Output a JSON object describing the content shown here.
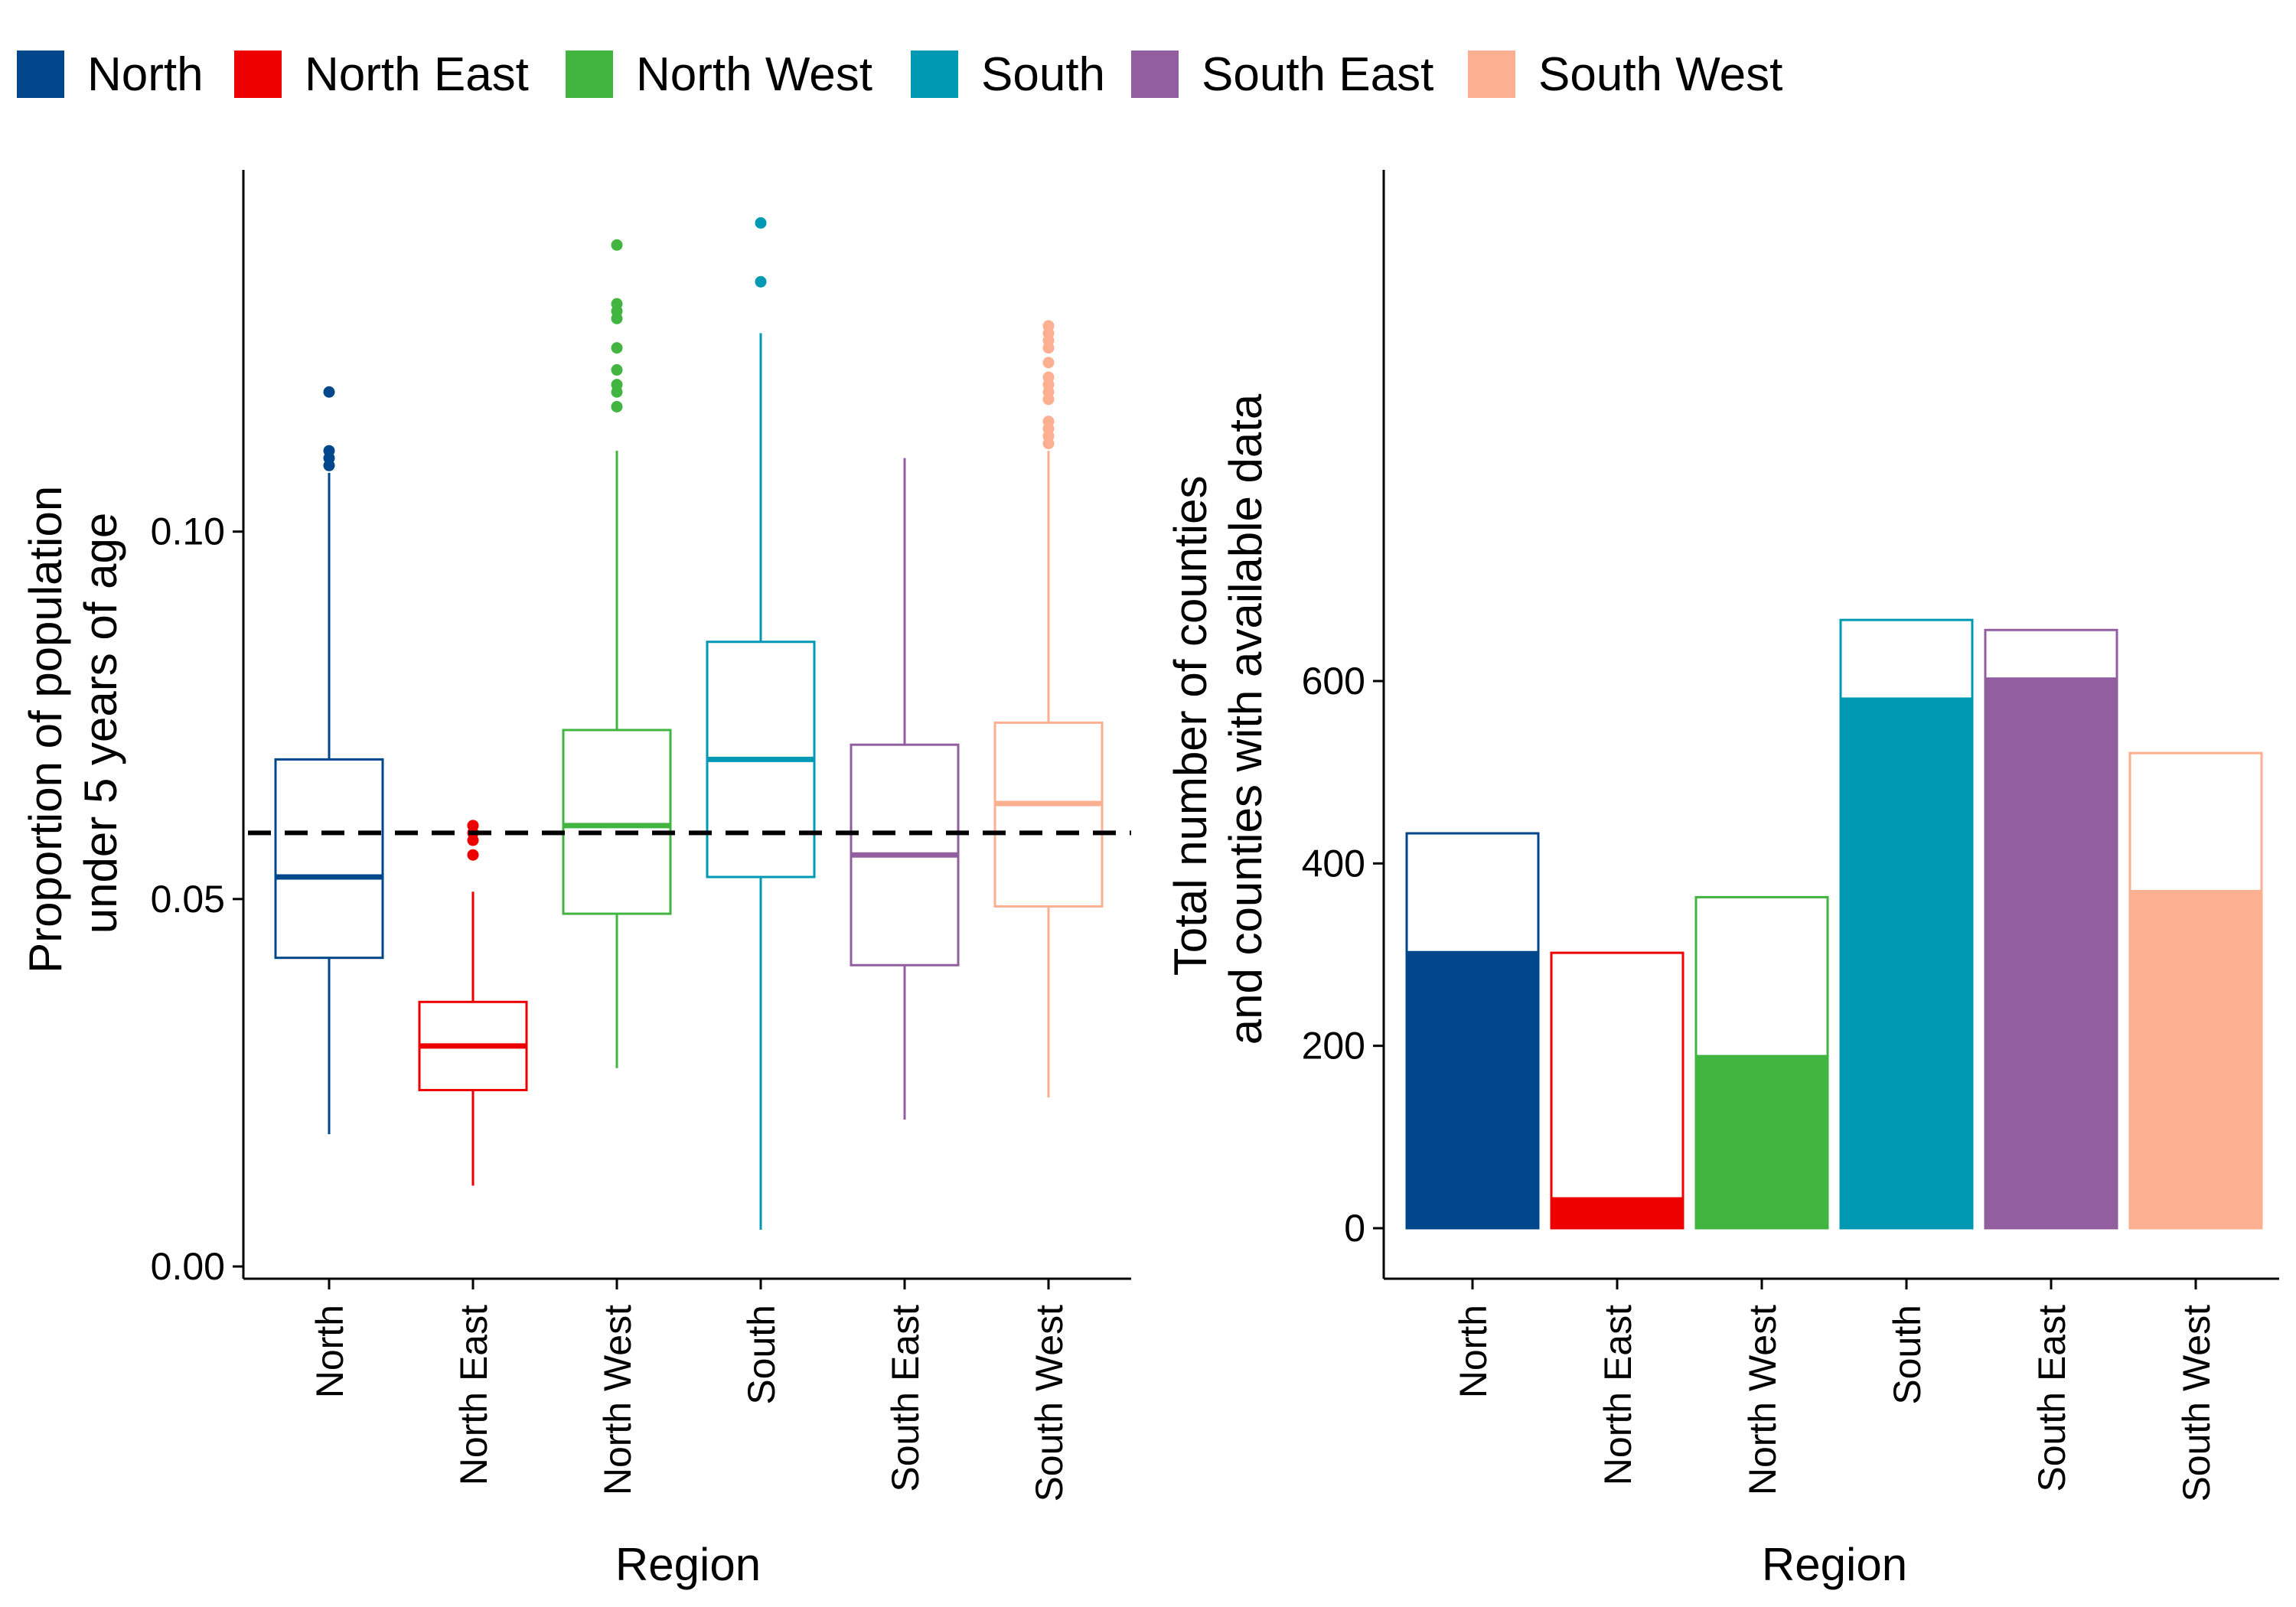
{
  "legend": {
    "items": [
      {
        "label": "North",
        "color": "#00468B"
      },
      {
        "label": "North East",
        "color": "#ED0000"
      },
      {
        "label": "North West",
        "color": "#42B540"
      },
      {
        "label": "South",
        "color": "#0099B4"
      },
      {
        "label": "South East",
        "color": "#925E9F"
      },
      {
        "label": "South West",
        "color": "#FDAF91"
      }
    ]
  },
  "chart_data": [
    {
      "type": "box",
      "xlabel": "Region",
      "ylabel_lines": [
        "Proportion of population",
        "under 5 years of age"
      ],
      "ylim": [
        0,
        0.142
      ],
      "yticks": [
        0.0,
        0.05,
        0.1
      ],
      "ytick_labels": [
        "0.00",
        "0.05",
        "0.10"
      ],
      "reference_line": {
        "y": 0.059,
        "style": "dashed"
      },
      "categories": [
        "North",
        "North East",
        "North West",
        "South",
        "South East",
        "South West"
      ],
      "boxes": [
        {
          "region": "North",
          "lower_whisker": 0.018,
          "q1": 0.042,
          "median": 0.053,
          "q3": 0.069,
          "upper_whisker": 0.108,
          "outliers": [
            0.109,
            0.11,
            0.111,
            0.119
          ]
        },
        {
          "region": "North East",
          "lower_whisker": 0.011,
          "q1": 0.024,
          "median": 0.03,
          "q3": 0.036,
          "upper_whisker": 0.051,
          "outliers": [
            0.056,
            0.058,
            0.059,
            0.06
          ]
        },
        {
          "region": "North West",
          "lower_whisker": 0.027,
          "q1": 0.048,
          "median": 0.06,
          "q3": 0.073,
          "upper_whisker": 0.111,
          "outliers": [
            0.117,
            0.119,
            0.12,
            0.122,
            0.125,
            0.129,
            0.13,
            0.131,
            0.139
          ]
        },
        {
          "region": "South",
          "lower_whisker": 0.005,
          "q1": 0.053,
          "median": 0.069,
          "q3": 0.085,
          "upper_whisker": 0.127,
          "outliers": [
            0.134,
            0.142
          ]
        },
        {
          "region": "South East",
          "lower_whisker": 0.02,
          "q1": 0.041,
          "median": 0.056,
          "q3": 0.071,
          "upper_whisker": 0.11,
          "outliers": []
        },
        {
          "region": "South West",
          "lower_whisker": 0.023,
          "q1": 0.049,
          "median": 0.063,
          "q3": 0.074,
          "upper_whisker": 0.111,
          "outliers": [
            0.112,
            0.113,
            0.114,
            0.115,
            0.118,
            0.119,
            0.12,
            0.121,
            0.123,
            0.125,
            0.126,
            0.127,
            0.128
          ]
        }
      ]
    },
    {
      "type": "bar",
      "xlabel": "Region",
      "ylabel_lines": [
        "Total number of counties",
        "and counties with available data"
      ],
      "ylim": [
        0,
        700
      ],
      "yticks": [
        0,
        200,
        400,
        600
      ],
      "ytick_labels": [
        "0",
        "200",
        "400",
        "600"
      ],
      "categories": [
        "North",
        "North East",
        "North West",
        "South",
        "South East",
        "South West"
      ],
      "series": [
        {
          "role": "total counties (outline)",
          "values": [
            433,
            302,
            363,
            667,
            656,
            521
          ]
        },
        {
          "role": "counties with available data (filled)",
          "values": [
            304,
            34,
            190,
            582,
            604,
            371
          ]
        }
      ]
    }
  ]
}
